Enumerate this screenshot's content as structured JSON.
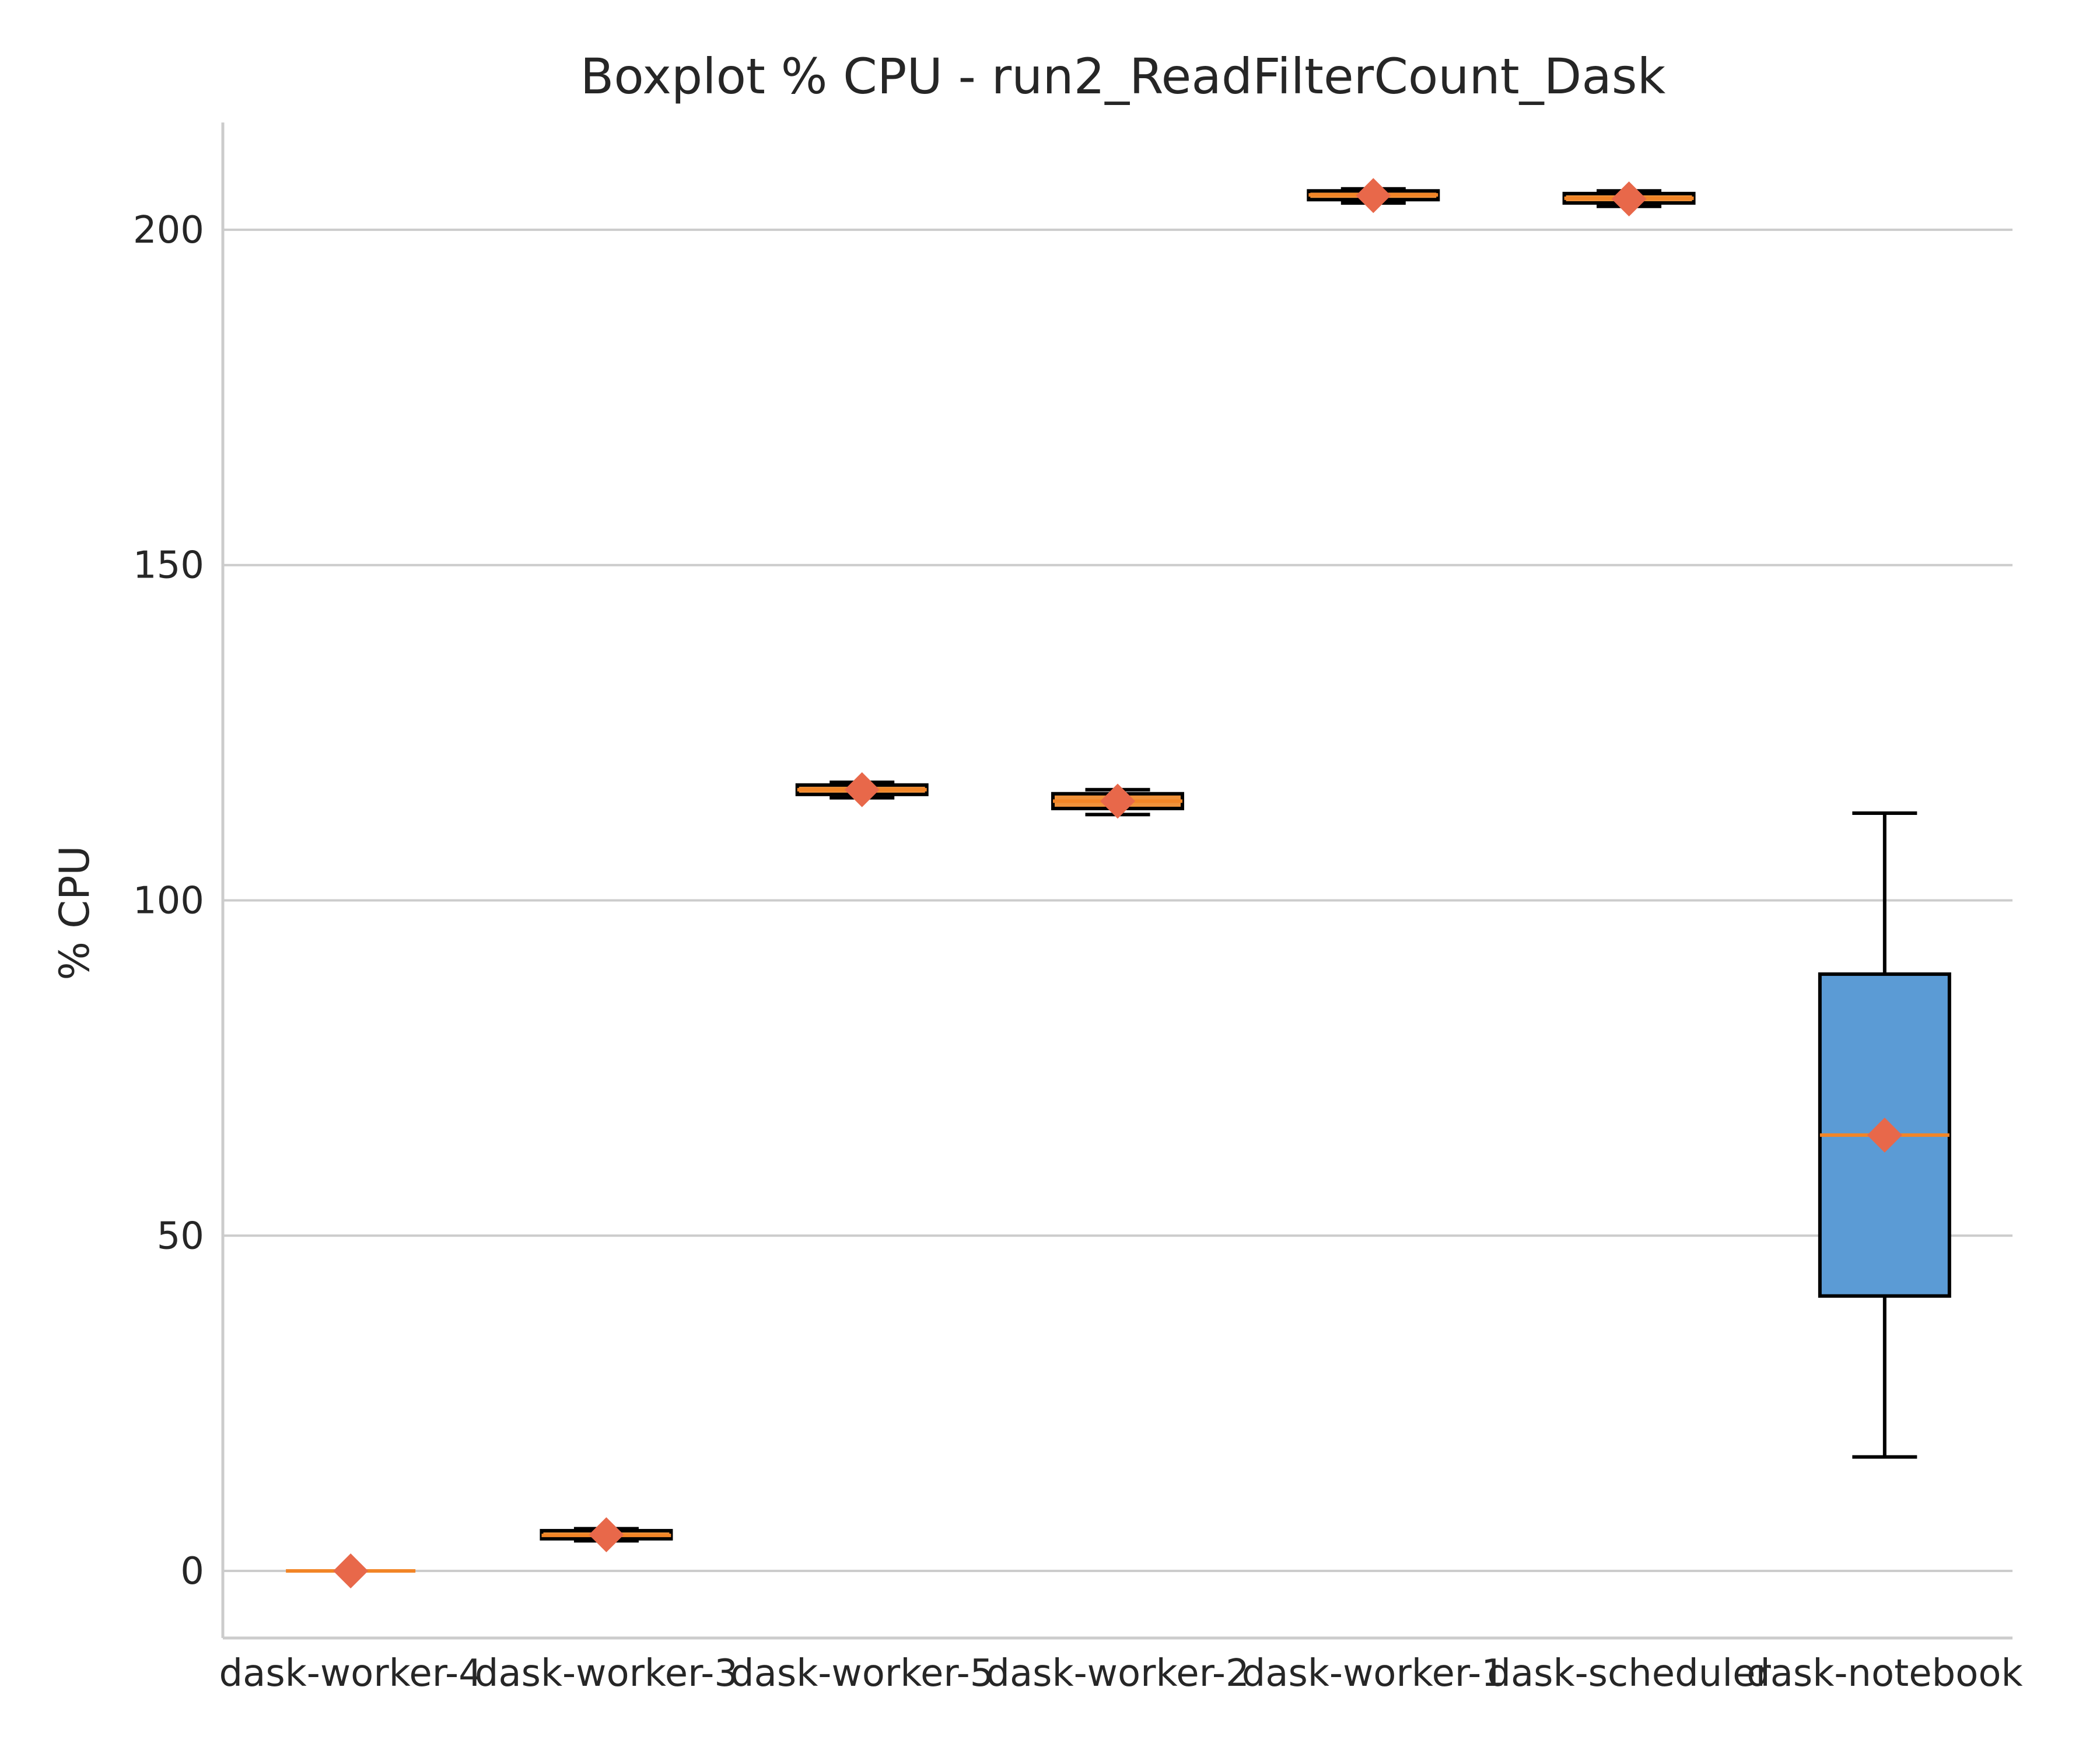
{
  "chart_data": {
    "type": "box",
    "title": "Boxplot % CPU - run2_ReadFilterCount_Dask",
    "xlabel": "",
    "ylabel": "% CPU",
    "ylim": [
      -10,
      216
    ],
    "yticks": [
      0,
      50,
      100,
      150,
      200
    ],
    "grid": "horizontal",
    "colors": {
      "box_fill": "#5b9bd5",
      "box_fill_small": "#f0923a",
      "median": "#f28527",
      "mean_marker": "#e8684a",
      "whisker": "#000000",
      "grid": "#cccccc",
      "text": "#262626"
    },
    "categories": [
      "dask-worker-4",
      "dask-worker-3",
      "dask-worker-5",
      "dask-worker-2",
      "dask-worker-1",
      "dask-scheduler",
      "dask-notebook"
    ],
    "boxes": [
      {
        "label": "dask-worker-4",
        "whislo": 0,
        "q1": 0,
        "median": 0,
        "q3": 0,
        "whishi": 0,
        "mean": 0
      },
      {
        "label": "dask-worker-3",
        "whislo": 4.5,
        "q1": 4.8,
        "median": 5.3,
        "q3": 6.0,
        "whishi": 6.3,
        "mean": 5.4
      },
      {
        "label": "dask-worker-5",
        "whislo": 115.3,
        "q1": 115.8,
        "median": 116.5,
        "q3": 117.2,
        "whishi": 117.6,
        "mean": 116.5
      },
      {
        "label": "dask-worker-2",
        "whislo": 112.8,
        "q1": 113.7,
        "median": 114.8,
        "q3": 115.9,
        "whishi": 116.5,
        "mean": 114.8
      },
      {
        "label": "dask-worker-1",
        "whislo": 204.0,
        "q1": 204.5,
        "median": 205.2,
        "q3": 205.8,
        "whishi": 206.1,
        "mean": 205.1
      },
      {
        "label": "dask-scheduler",
        "whislo": 203.5,
        "q1": 204.0,
        "median": 204.7,
        "q3": 205.4,
        "whishi": 205.8,
        "mean": 204.6
      },
      {
        "label": "dask-notebook",
        "whislo": 17,
        "q1": 41,
        "median": 65,
        "q3": 89,
        "whishi": 113,
        "mean": 65
      }
    ]
  }
}
